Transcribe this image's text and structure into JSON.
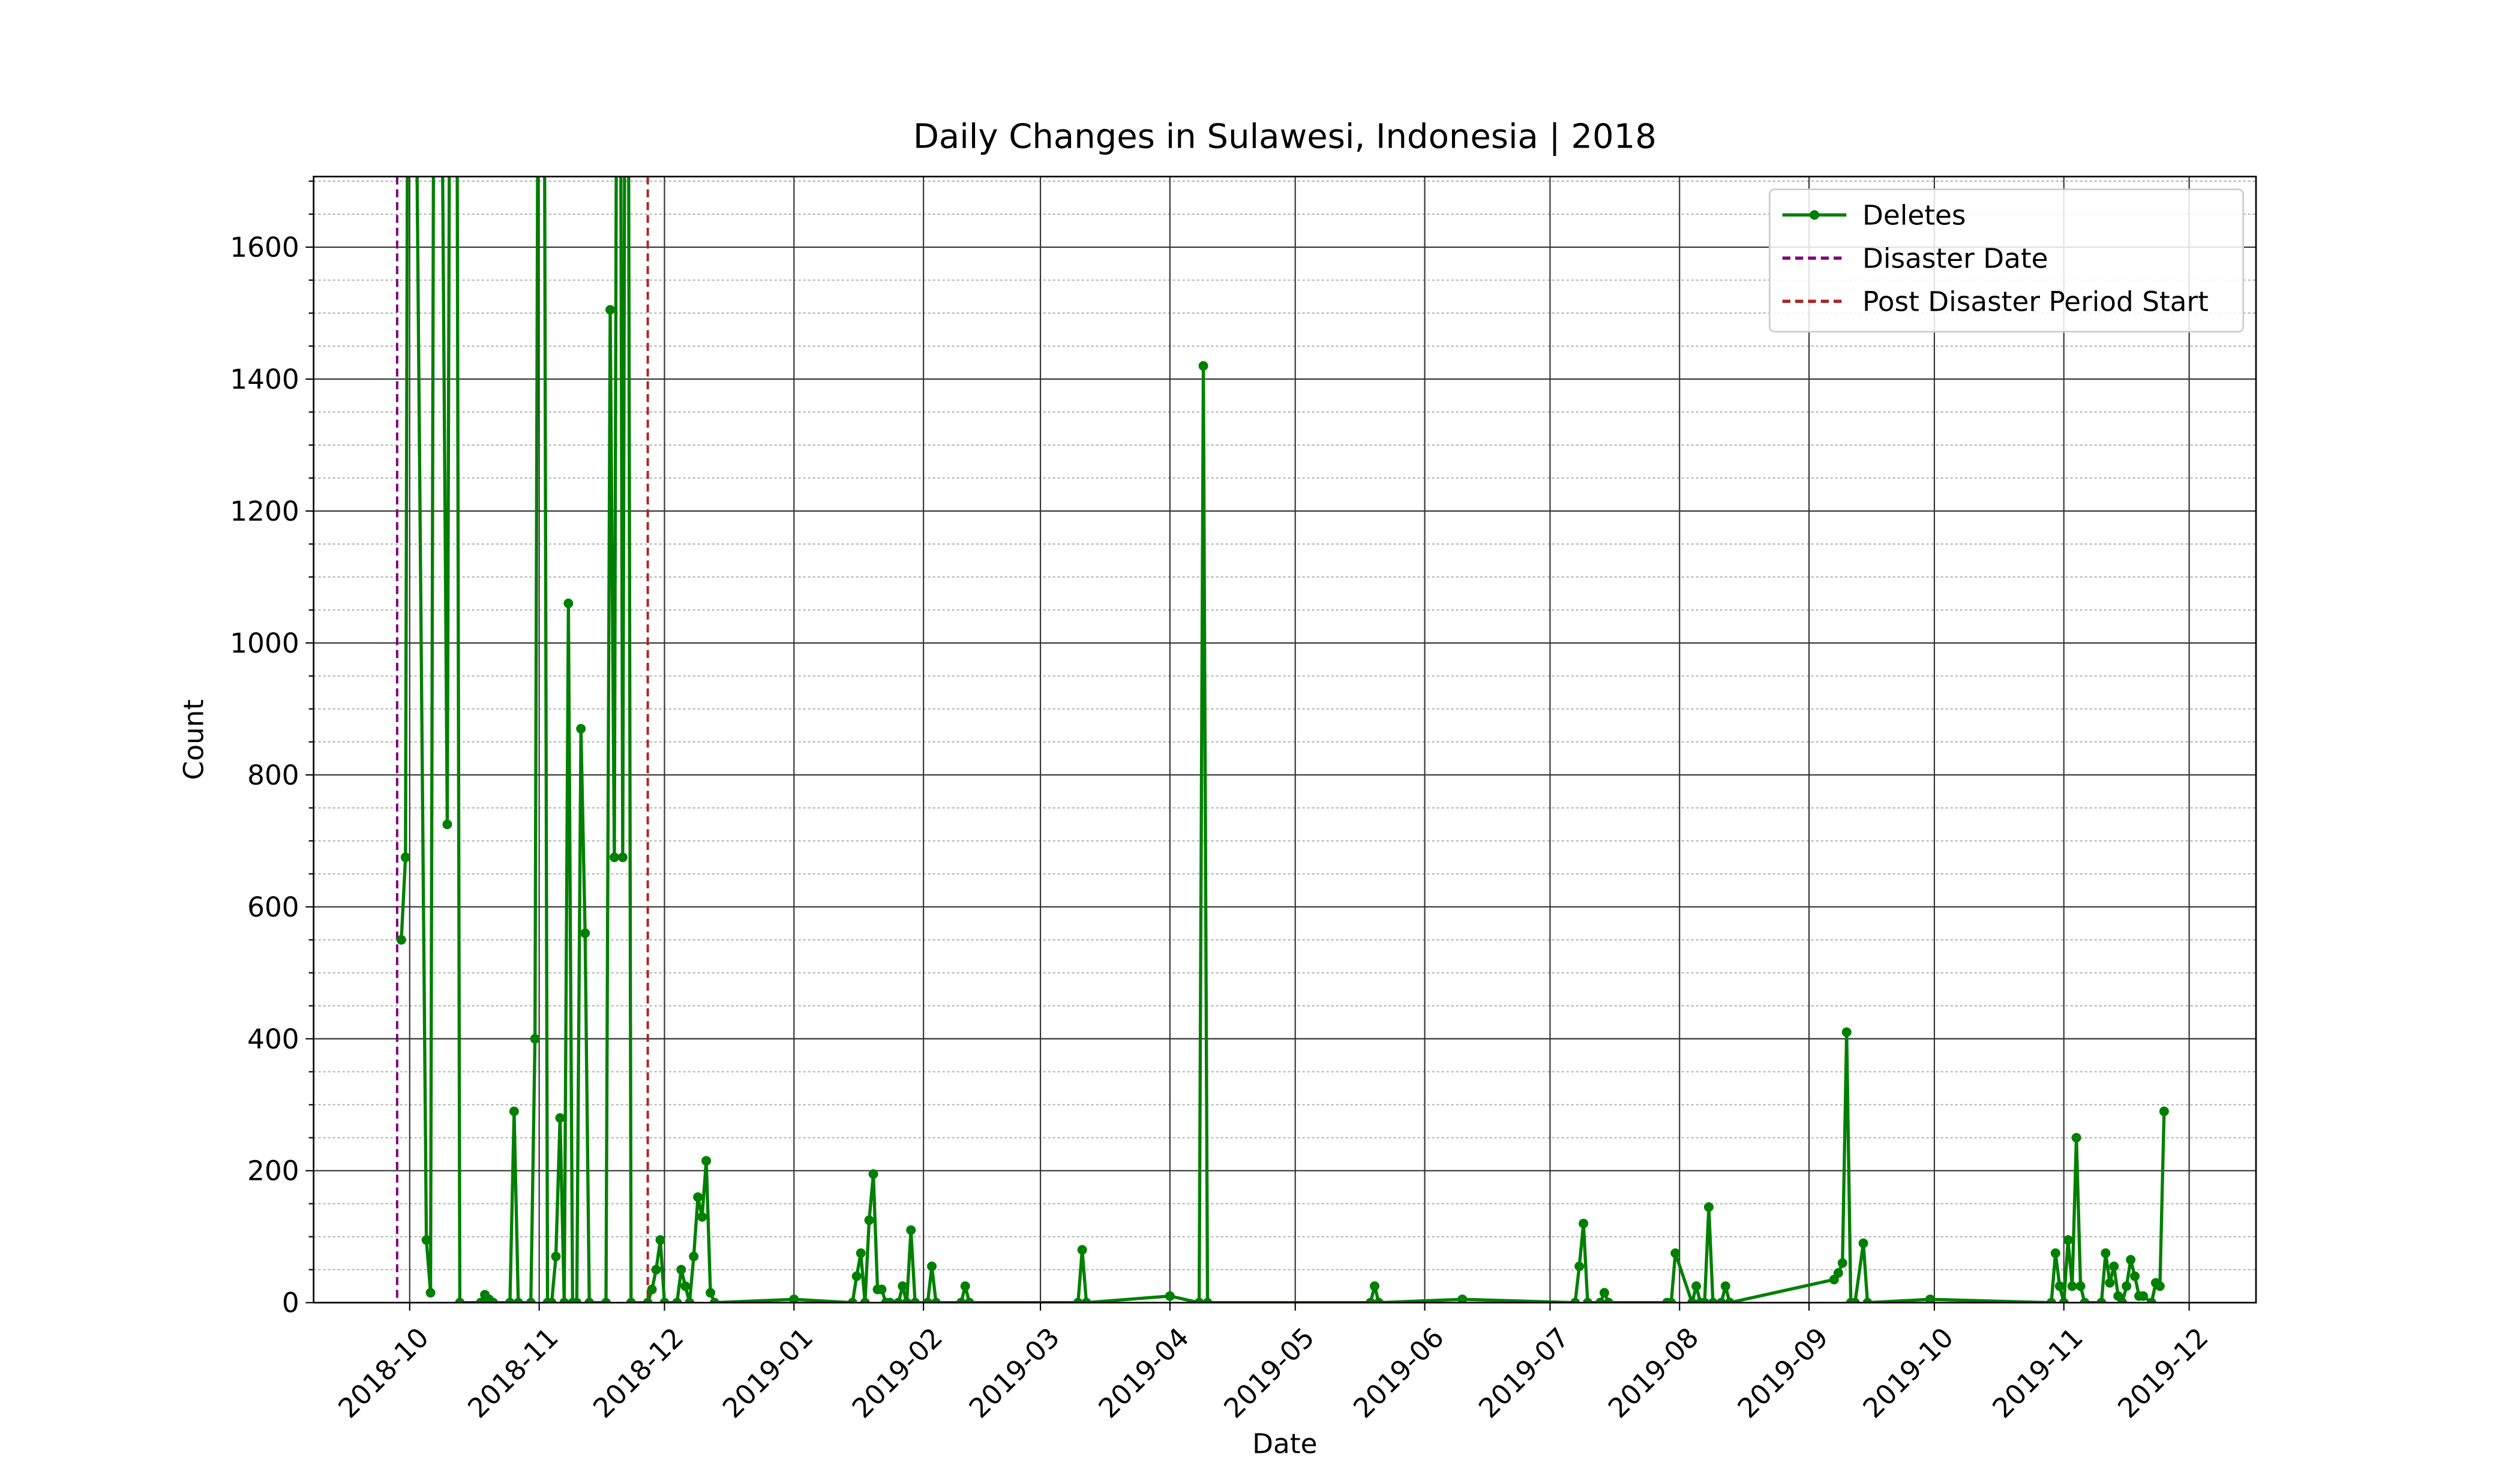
{
  "chart_data": {
    "type": "line",
    "title": "Daily Changes in Sulawesi, Indonesia | 2018",
    "xlabel": "Date",
    "ylabel": "Count",
    "xlim": [
      "2018-09-08",
      "2019-12-17"
    ],
    "ylim": [
      0,
      1707
    ],
    "xticks": [
      {
        "value": "2018-10-01",
        "label": "2018-10"
      },
      {
        "value": "2018-11-01",
        "label": "2018-11"
      },
      {
        "value": "2018-12-01",
        "label": "2018-12"
      },
      {
        "value": "2019-01-01",
        "label": "2019-01"
      },
      {
        "value": "2019-02-01",
        "label": "2019-02"
      },
      {
        "value": "2019-03-01",
        "label": "2019-03"
      },
      {
        "value": "2019-04-01",
        "label": "2019-04"
      },
      {
        "value": "2019-05-01",
        "label": "2019-05"
      },
      {
        "value": "2019-06-01",
        "label": "2019-06"
      },
      {
        "value": "2019-07-01",
        "label": "2019-07"
      },
      {
        "value": "2019-08-01",
        "label": "2019-08"
      },
      {
        "value": "2019-09-01",
        "label": "2019-09"
      },
      {
        "value": "2019-10-01",
        "label": "2019-10"
      },
      {
        "value": "2019-11-01",
        "label": "2019-11"
      },
      {
        "value": "2019-12-01",
        "label": "2019-12"
      }
    ],
    "yticks": [
      0,
      200,
      400,
      600,
      800,
      1000,
      1200,
      1400,
      1600
    ],
    "yticks_minor": [
      50,
      100,
      150,
      250,
      300,
      350,
      450,
      500,
      550,
      650,
      700,
      750,
      850,
      900,
      950,
      1050,
      1100,
      1150,
      1250,
      1300,
      1350,
      1450,
      1500,
      1550,
      1650,
      1700
    ],
    "grid": true,
    "legend": "upper right",
    "x": [
      "2018-09-29",
      "2018-09-30",
      "2018-10-01",
      "2018-10-05",
      "2018-10-06",
      "2018-10-07",
      "2018-10-08",
      "2018-10-10",
      "2018-10-11",
      "2018-10-12",
      "2018-10-13",
      "2018-10-18",
      "2018-10-19",
      "2018-10-20",
      "2018-10-21",
      "2018-10-25",
      "2018-10-26",
      "2018-10-27",
      "2018-10-30",
      "2018-10-31",
      "2018-11-01",
      "2018-11-02",
      "2018-11-03",
      "2018-11-04",
      "2018-11-05",
      "2018-11-06",
      "2018-11-07",
      "2018-11-08",
      "2018-11-09",
      "2018-11-10",
      "2018-11-11",
      "2018-11-12",
      "2018-11-13",
      "2018-11-17",
      "2018-11-18",
      "2018-11-19",
      "2018-11-20",
      "2018-11-21",
      "2018-11-22",
      "2018-11-23",
      "2018-11-27",
      "2018-11-28",
      "2018-11-29",
      "2018-11-30",
      "2018-12-01",
      "2018-12-04",
      "2018-12-05",
      "2018-12-06",
      "2018-12-07",
      "2018-12-08",
      "2018-12-09",
      "2018-12-10",
      "2018-12-11",
      "2018-12-12",
      "2018-12-13",
      "2019-01-01",
      "2019-01-15",
      "2019-01-16",
      "2019-01-17",
      "2019-01-18",
      "2019-01-19",
      "2019-01-20",
      "2019-01-21",
      "2019-01-22",
      "2019-01-23",
      "2019-01-24",
      "2019-01-26",
      "2019-01-27",
      "2019-01-28",
      "2019-01-29",
      "2019-01-30",
      "2019-02-02",
      "2019-02-03",
      "2019-02-04",
      "2019-02-10",
      "2019-02-11",
      "2019-02-12",
      "2019-03-10",
      "2019-03-11",
      "2019-03-12",
      "2019-04-01",
      "2019-04-08",
      "2019-04-09",
      "2019-04-10",
      "2019-05-19",
      "2019-05-20",
      "2019-05-21",
      "2019-06-10",
      "2019-07-07",
      "2019-07-08",
      "2019-07-09",
      "2019-07-10",
      "2019-07-13",
      "2019-07-14",
      "2019-07-15",
      "2019-07-29",
      "2019-07-30",
      "2019-07-31",
      "2019-08-04",
      "2019-08-05",
      "2019-08-06",
      "2019-08-07",
      "2019-08-08",
      "2019-08-09",
      "2019-08-11",
      "2019-08-12",
      "2019-08-13",
      "2019-09-07",
      "2019-09-08",
      "2019-09-09",
      "2019-09-10",
      "2019-09-11",
      "2019-09-12",
      "2019-09-14",
      "2019-09-15",
      "2019-09-30",
      "2019-10-29",
      "2019-10-30",
      "2019-10-31",
      "2019-11-01",
      "2019-11-02",
      "2019-11-03",
      "2019-11-04",
      "2019-11-05",
      "2019-11-06",
      "2019-11-10",
      "2019-11-11",
      "2019-11-12",
      "2019-11-13",
      "2019-11-14",
      "2019-11-15",
      "2019-11-16",
      "2019-11-17",
      "2019-11-18",
      "2019-11-19",
      "2019-11-20",
      "2019-11-22",
      "2019-11-23",
      "2019-11-24",
      "2019-11-25"
    ],
    "series": [
      {
        "name": "Deletes",
        "color": "#008000",
        "values": [
          550,
          675,
          3000,
          95,
          15,
          2500,
          2500,
          725,
          2800,
          2800,
          0,
          0,
          12,
          5,
          0,
          0,
          290,
          0,
          0,
          400,
          2500,
          2500,
          0,
          0,
          70,
          280,
          0,
          1060,
          0,
          0,
          870,
          560,
          0,
          0,
          1505,
          675,
          3000,
          675,
          3000,
          0,
          0,
          20,
          50,
          95,
          0,
          0,
          50,
          25,
          0,
          70,
          160,
          130,
          215,
          15,
          0,
          5,
          0,
          40,
          75,
          0,
          125,
          195,
          20,
          20,
          0,
          0,
          0,
          25,
          0,
          110,
          0,
          0,
          55,
          0,
          0,
          25,
          0,
          0,
          80,
          0,
          10,
          0,
          1420,
          0,
          0,
          25,
          0,
          5,
          0,
          55,
          120,
          0,
          0,
          15,
          0,
          0,
          0,
          75,
          0,
          25,
          0,
          0,
          145,
          0,
          0,
          25,
          0,
          35,
          45,
          60,
          410,
          0,
          0,
          90,
          0,
          5,
          0,
          75,
          25,
          0,
          95,
          25,
          250,
          25,
          0,
          0,
          75,
          30,
          55,
          10,
          0,
          25,
          65,
          40,
          10,
          10,
          0,
          30,
          25,
          290
        ]
      }
    ],
    "vlines": [
      {
        "name": "Disaster Date",
        "x": "2018-09-28",
        "color": "#800080"
      },
      {
        "name": "Post Disaster Period Start",
        "x": "2018-11-27",
        "color": "#b22222"
      }
    ]
  }
}
